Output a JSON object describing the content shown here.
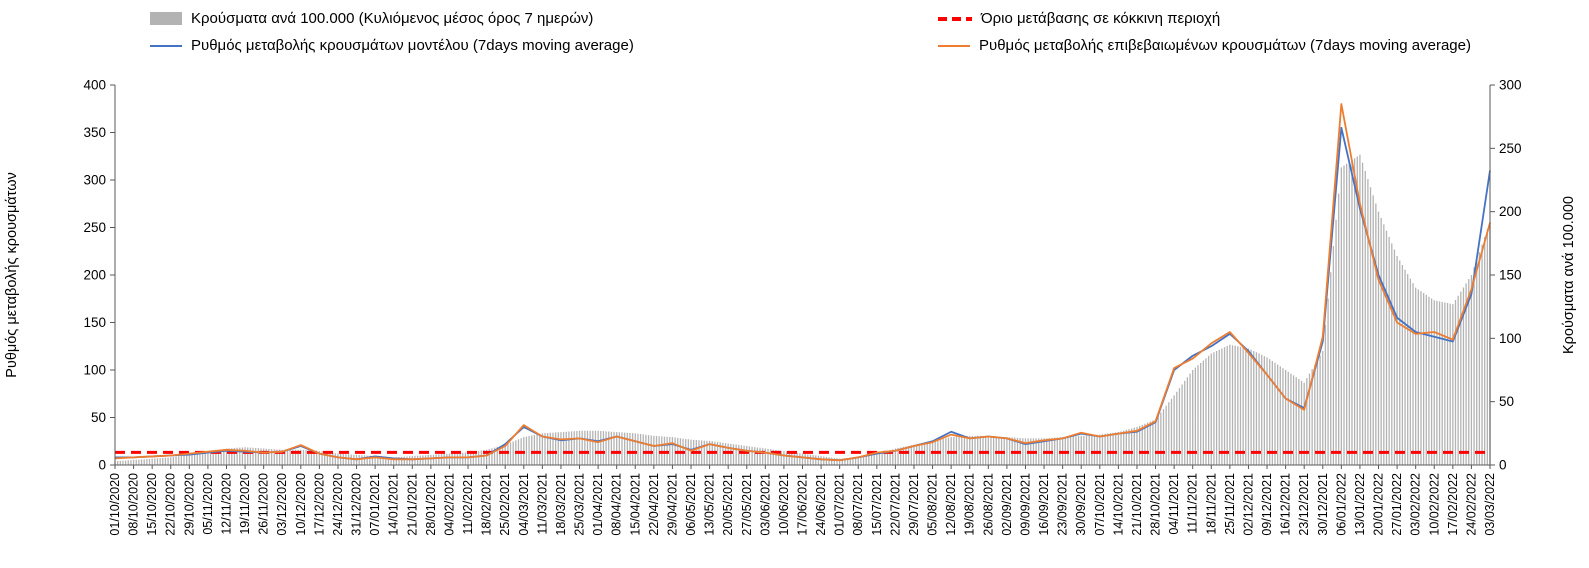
{
  "legend_note": "",
  "chart_data": {
    "type": "combo-bar-line",
    "title": "",
    "categories": [
      "01/10/2020",
      "08/10/2020",
      "15/10/2020",
      "22/10/2020",
      "29/10/2020",
      "05/11/2020",
      "12/11/2020",
      "19/11/2020",
      "26/11/2020",
      "03/12/2020",
      "10/12/2020",
      "17/12/2020",
      "24/12/2020",
      "31/12/2020",
      "07/01/2021",
      "14/01/2021",
      "21/01/2021",
      "28/01/2021",
      "04/02/2021",
      "11/02/2021",
      "18/02/2021",
      "25/02/2021",
      "04/03/2021",
      "11/03/2021",
      "18/03/2021",
      "25/03/2021",
      "01/04/2021",
      "08/04/2021",
      "15/04/2021",
      "22/04/2021",
      "29/04/2021",
      "06/05/2021",
      "13/05/2021",
      "20/05/2021",
      "27/05/2021",
      "03/06/2021",
      "10/06/2021",
      "17/06/2021",
      "24/06/2021",
      "01/07/2021",
      "08/07/2021",
      "15/07/2021",
      "22/07/2021",
      "29/07/2021",
      "05/08/2021",
      "12/08/2021",
      "19/08/2021",
      "26/08/2021",
      "02/09/2021",
      "09/09/2021",
      "16/09/2021",
      "23/09/2021",
      "30/09/2021",
      "07/10/2021",
      "14/10/2021",
      "21/10/2021",
      "28/10/2021",
      "04/11/2021",
      "11/11/2021",
      "18/11/2021",
      "25/11/2021",
      "02/12/2021",
      "09/12/2021",
      "16/12/2021",
      "23/12/2021",
      "30/12/2021",
      "06/01/2022",
      "13/01/2022",
      "20/01/2022",
      "27/01/2022",
      "03/02/2022",
      "10/02/2022",
      "17/02/2022",
      "24/02/2022",
      "03/03/2022"
    ],
    "left_axis": {
      "label": "Ρυθμός μεταβολής κρουσμάτων",
      "min": 0,
      "max": 400,
      "ticks": [
        0,
        50,
        100,
        150,
        200,
        250,
        300,
        350,
        400
      ]
    },
    "right_axis": {
      "label": "Κρούσματα ανά 100.000",
      "min": 0,
      "max": 300,
      "ticks": [
        0,
        50,
        100,
        150,
        200,
        250,
        300
      ]
    },
    "threshold": {
      "name": "Όριο μετάβασης σε κόκκινη περιοχή",
      "axis": "right",
      "value": 10,
      "color": "#FF0000",
      "style": "dashed"
    },
    "series": [
      {
        "name": "Κρούσματα ανά 100.000 (Κυλιόμενος μέσος όρος 7 ημερών)",
        "type": "bar",
        "axis": "right",
        "color": "#B3B3B3",
        "values": [
          3,
          4,
          5,
          6,
          8,
          10,
          13,
          14,
          13,
          12,
          12,
          11,
          9,
          8,
          7,
          6,
          7,
          8,
          9,
          10,
          12,
          16,
          22,
          25,
          26,
          27,
          27,
          26,
          25,
          23,
          22,
          20,
          19,
          17,
          15,
          13,
          11,
          9,
          7,
          5,
          6,
          9,
          13,
          16,
          19,
          22,
          23,
          23,
          22,
          21,
          21,
          22,
          23,
          24,
          26,
          30,
          36,
          55,
          75,
          88,
          95,
          92,
          85,
          75,
          65,
          90,
          235,
          245,
          200,
          165,
          140,
          130,
          127,
          150,
          192
        ]
      },
      {
        "name": "Ρυθμός μεταβολής κρουσμάτων μοντέλου (7days moving average)",
        "type": "line",
        "axis": "left",
        "color": "#4472C4",
        "values": [
          8,
          8,
          9,
          10,
          11,
          13,
          15,
          14,
          13,
          14,
          20,
          12,
          8,
          6,
          9,
          7,
          6,
          7,
          8,
          8,
          10,
          22,
          40,
          30,
          26,
          28,
          25,
          30,
          25,
          20,
          22,
          16,
          22,
          18,
          15,
          13,
          10,
          8,
          6,
          5,
          8,
          12,
          15,
          20,
          25,
          35,
          28,
          30,
          28,
          22,
          25,
          28,
          33,
          30,
          33,
          35,
          45,
          100,
          115,
          125,
          138,
          120,
          95,
          70,
          60,
          130,
          355,
          270,
          200,
          155,
          140,
          135,
          130,
          180,
          310
        ]
      },
      {
        "name": "Ρυθμός μεταβολής επιβεβαιωμένων κρουσμάτων (7days moving average)",
        "type": "line",
        "axis": "left",
        "color": "#ED7D31",
        "values": [
          7,
          8,
          9,
          10,
          12,
          14,
          16,
          15,
          13,
          14,
          21,
          12,
          8,
          6,
          8,
          6,
          6,
          7,
          8,
          8,
          10,
          20,
          42,
          30,
          27,
          28,
          24,
          30,
          25,
          20,
          23,
          15,
          22,
          18,
          15,
          13,
          10,
          8,
          6,
          5,
          8,
          13,
          15,
          20,
          24,
          32,
          28,
          30,
          28,
          23,
          26,
          28,
          34,
          30,
          33,
          36,
          46,
          102,
          112,
          128,
          140,
          118,
          95,
          70,
          58,
          135,
          380,
          275,
          195,
          150,
          138,
          140,
          132,
          185,
          255
        ]
      }
    ]
  }
}
